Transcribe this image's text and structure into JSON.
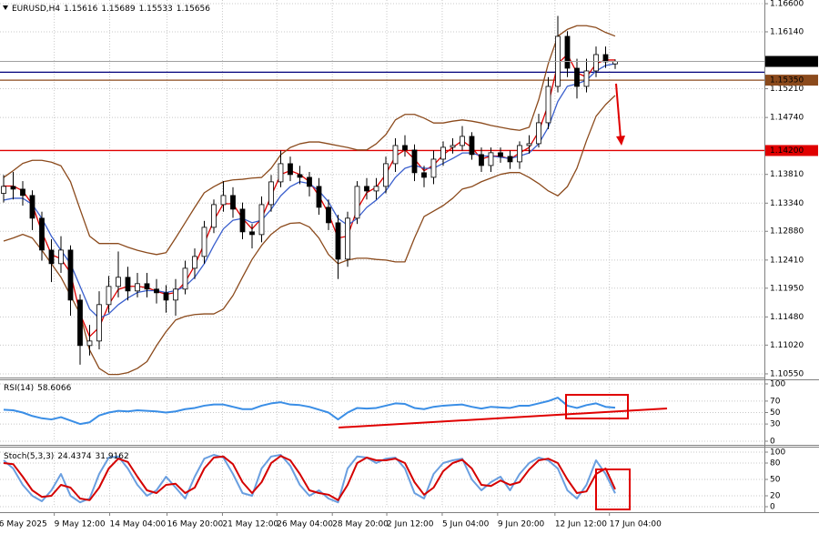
{
  "chart_data": [
    {
      "type": "candlestick",
      "title": "EURUSD,H4",
      "open": [
        1.135,
        1.13614,
        1.13569,
        1.13465,
        1.13094,
        1.12573,
        1.12351,
        1.12573,
        1.11756,
        1.11013,
        1.11087,
        1.11682,
        1.11979,
        1.12128,
        1.11905,
        1.12024,
        1.11935,
        1.11875,
        1.11756,
        1.11935,
        1.12276,
        1.12469,
        1.12945,
        1.13316,
        1.13465,
        1.13242,
        1.12871,
        1.12826,
        1.13316,
        1.13688,
        1.13985,
        1.13807,
        1.13762,
        1.13614,
        1.13272,
        1.13019,
        1.12425,
        1.13094,
        1.13614,
        1.13539,
        1.13614,
        1.13985,
        1.14282,
        1.14208,
        1.13837,
        1.13762,
        1.14059,
        1.14253,
        1.14282,
        1.14431,
        1.14134,
        1.13955,
        1.14164,
        1.14104,
        1.14015,
        1.14282,
        1.14312,
        1.14654,
        1.15248,
        1.16066,
        1.15545,
        1.15248,
        1.15501,
        1.15768,
        1.15616
      ],
      "high": [
        1.138,
        1.1385,
        1.137,
        1.1355,
        1.132,
        1.1275,
        1.128,
        1.1265,
        1.1185,
        1.1135,
        1.119,
        1.1215,
        1.1255,
        1.123,
        1.122,
        1.122,
        1.121,
        1.12,
        1.121,
        1.124,
        1.126,
        1.1305,
        1.134,
        1.137,
        1.136,
        1.1335,
        1.13,
        1.1345,
        1.138,
        1.142,
        1.141,
        1.1395,
        1.1385,
        1.1375,
        1.134,
        1.1315,
        1.132,
        1.137,
        1.1375,
        1.1375,
        1.141,
        1.144,
        1.1445,
        1.143,
        1.1395,
        1.142,
        1.1435,
        1.144,
        1.146,
        1.145,
        1.1425,
        1.1425,
        1.1425,
        1.142,
        1.1435,
        1.1445,
        1.148,
        1.154,
        1.164,
        1.1615,
        1.157,
        1.157,
        1.159,
        1.159,
        1.15689
      ],
      "low": [
        1.1335,
        1.134,
        1.133,
        1.129,
        1.124,
        1.1205,
        1.122,
        1.115,
        1.107,
        1.1085,
        1.1095,
        1.1155,
        1.118,
        1.1175,
        1.118,
        1.118,
        1.117,
        1.1155,
        1.115,
        1.1185,
        1.121,
        1.1235,
        1.1285,
        1.132,
        1.131,
        1.1275,
        1.126,
        1.127,
        1.132,
        1.136,
        1.137,
        1.1365,
        1.1345,
        1.1315,
        1.129,
        1.121,
        1.123,
        1.13,
        1.134,
        1.134,
        1.135,
        1.1385,
        1.141,
        1.137,
        1.136,
        1.1365,
        1.1395,
        1.1415,
        1.142,
        1.1405,
        1.1385,
        1.1385,
        1.14,
        1.139,
        1.139,
        1.1415,
        1.1425,
        1.1455,
        1.1515,
        1.154,
        1.1505,
        1.1515,
        1.154,
        1.1555,
        1.15533
      ],
      "close": [
        1.13614,
        1.13569,
        1.13465,
        1.13094,
        1.12573,
        1.12351,
        1.12573,
        1.11756,
        1.11013,
        1.11087,
        1.11682,
        1.11979,
        1.12128,
        1.11905,
        1.12024,
        1.11935,
        1.11875,
        1.11756,
        1.11935,
        1.12276,
        1.12469,
        1.12945,
        1.13316,
        1.13465,
        1.13242,
        1.12871,
        1.12826,
        1.13316,
        1.13688,
        1.13985,
        1.13807,
        1.13762,
        1.13614,
        1.13272,
        1.13019,
        1.12425,
        1.13094,
        1.13614,
        1.13539,
        1.13614,
        1.13985,
        1.14282,
        1.14208,
        1.13837,
        1.13762,
        1.14059,
        1.14253,
        1.14282,
        1.14431,
        1.14134,
        1.13955,
        1.14164,
        1.14104,
        1.14015,
        1.14282,
        1.14312,
        1.14654,
        1.15248,
        1.16066,
        1.15545,
        1.15248,
        1.15501,
        1.15768,
        1.1565,
        1.15656
      ],
      "up_color": "#ffffff",
      "down_color": "#000000",
      "series": [
        {
          "color": "#8b4a1c",
          "values": [
            1.1376,
            1.1387,
            1.1399,
            1.1404,
            1.1404,
            1.1401,
            1.1395,
            1.1369,
            1.1324,
            1.128,
            1.1268,
            1.1268,
            1.1268,
            1.1262,
            1.1257,
            1.1253,
            1.125,
            1.1253,
            1.1277,
            1.1302,
            1.1327,
            1.1351,
            1.1361,
            1.1369,
            1.1372,
            1.1373,
            1.1375,
            1.1376,
            1.1391,
            1.1413,
            1.1425,
            1.1431,
            1.1434,
            1.1434,
            1.1431,
            1.1428,
            1.1425,
            1.1421,
            1.1421,
            1.1431,
            1.1446,
            1.147,
            1.1479,
            1.1479,
            1.1473,
            1.1465,
            1.1465,
            1.1468,
            1.147,
            1.1468,
            1.1465,
            1.1461,
            1.1458,
            1.1455,
            1.1453,
            1.1458,
            1.1503,
            1.1562,
            1.1607,
            1.1618,
            1.1624,
            1.1624,
            1.1621,
            1.1613,
            1.1607
          ]
        },
        {
          "color": "#8b4a1c",
          "values": [
            1.1272,
            1.1277,
            1.1283,
            1.1277,
            1.1257,
            1.1235,
            1.1213,
            1.1183,
            1.1153,
            1.1094,
            1.1064,
            1.1054,
            1.1054,
            1.1057,
            1.1064,
            1.1075,
            1.1101,
            1.1124,
            1.1143,
            1.1149,
            1.1152,
            1.1153,
            1.1153,
            1.1161,
            1.1183,
            1.1213,
            1.1242,
            1.1265,
            1.1283,
            1.1295,
            1.1301,
            1.1302,
            1.1295,
            1.1277,
            1.125,
            1.1235,
            1.1241,
            1.1244,
            1.1244,
            1.1242,
            1.1241,
            1.1238,
            1.1238,
            1.1277,
            1.1312,
            1.1321,
            1.133,
            1.1342,
            1.1357,
            1.1361,
            1.1369,
            1.1375,
            1.1381,
            1.1384,
            1.1384,
            1.1376,
            1.1366,
            1.1354,
            1.1346,
            1.1361,
            1.1391,
            1.1436,
            1.1476,
            1.1495,
            1.151
          ]
        },
        {
          "color": "#e00000",
          "values": [
            1.1362,
            1.1362,
            1.1354,
            1.1332,
            1.1287,
            1.125,
            1.1243,
            1.122,
            1.1153,
            1.1116,
            1.1131,
            1.1168,
            1.1193,
            1.1198,
            1.1198,
            1.1196,
            1.119,
            1.1185,
            1.1188,
            1.1205,
            1.1232,
            1.1268,
            1.1306,
            1.1333,
            1.1333,
            1.1309,
            1.1292,
            1.1309,
            1.1346,
            1.1381,
            1.1387,
            1.1381,
            1.1369,
            1.1346,
            1.1317,
            1.1277,
            1.128,
            1.1324,
            1.1351,
            1.136,
            1.1381,
            1.1411,
            1.1421,
            1.1406,
            1.1387,
            1.1396,
            1.1413,
            1.1425,
            1.1436,
            1.1425,
            1.1406,
            1.1411,
            1.1411,
            1.1406,
            1.1416,
            1.1425,
            1.1451,
            1.1495,
            1.1562,
            1.1577,
            1.1547,
            1.154,
            1.1562,
            1.1568,
            1.1568
          ]
        },
        {
          "color": "#3a5fcd",
          "values": [
            1.1339,
            1.1342,
            1.1342,
            1.1332,
            1.1309,
            1.128,
            1.1257,
            1.1235,
            1.1198,
            1.1161,
            1.1146,
            1.1153,
            1.1168,
            1.1179,
            1.1188,
            1.1191,
            1.1191,
            1.1188,
            1.1191,
            1.1198,
            1.1213,
            1.1235,
            1.1265,
            1.1292,
            1.1306,
            1.1309,
            1.1302,
            1.1306,
            1.1324,
            1.1346,
            1.1361,
            1.1369,
            1.1366,
            1.1354,
            1.1336,
            1.1309,
            1.1298,
            1.1309,
            1.1327,
            1.1339,
            1.1354,
            1.1376,
            1.1391,
            1.1396,
            1.1391,
            1.1391,
            1.1399,
            1.1407,
            1.1416,
            1.1416,
            1.1411,
            1.1411,
            1.1409,
            1.1407,
            1.1411,
            1.1416,
            1.1431,
            1.1458,
            1.15,
            1.1525,
            1.1529,
            1.1535,
            1.155,
            1.1559,
            1.1562
          ]
        }
      ],
      "levels": [
        {
          "value": 1.142,
          "label": "1.14200",
          "color": "#e00000"
        },
        {
          "value": 1.1548,
          "color": "#00007a"
        },
        {
          "value": 1.1535,
          "label": "1.15350",
          "color": "#8b4a1c"
        }
      ],
      "ylim": [
        1.1049,
        1.1666
      ],
      "yticks": [
        {
          "value": 1.166,
          "label": "1.16600"
        },
        {
          "value": 1.1614,
          "label": "1.16140"
        },
        {
          "value": 1.1521,
          "label": "1.15210"
        },
        {
          "value": 1.1474,
          "label": "1.14740"
        },
        {
          "value": 1.1381,
          "label": "1.13810"
        },
        {
          "value": 1.1334,
          "label": "1.13340"
        },
        {
          "value": 1.1288,
          "label": "1.12880"
        },
        {
          "value": 1.1241,
          "label": "1.12410"
        },
        {
          "value": 1.1195,
          "label": "1.11950"
        },
        {
          "value": 1.1148,
          "label": "1.11480"
        },
        {
          "value": 1.1102,
          "label": "1.11020"
        },
        {
          "value": 1.1055,
          "label": "1.10550"
        }
      ],
      "xlim": [
        -0.38,
        79.62
      ],
      "xticks": [
        {
          "value": -0.5,
          "label": "6 May 2025"
        },
        {
          "value": 5.3,
          "label": "9 May 12:00"
        },
        {
          "value": 11.1,
          "label": "14 May 04:00"
        },
        {
          "value": 17.1,
          "label": "16 May 20:00"
        },
        {
          "value": 22.9,
          "label": "21 May 12:00"
        },
        {
          "value": 28.6,
          "label": "26 May 04:00"
        },
        {
          "value": 34.4,
          "label": "28 May 20:00"
        },
        {
          "value": 40.1,
          "label": "2 Jun 12:00"
        },
        {
          "value": 45.9,
          "label": "5 Jun 04:00"
        },
        {
          "value": 51.7,
          "label": "9 Jun 20:00"
        },
        {
          "value": 57.7,
          "label": "12 Jun 12:00"
        },
        {
          "value": 63.4,
          "label": "17 Jun 04:00"
        }
      ],
      "grid": true
    },
    {
      "type": "line",
      "series": [
        {
          "name": "RSI(14)",
          "color": "#3a8ee6",
          "values": [
            55,
            54,
            50,
            44,
            40,
            38,
            42,
            36,
            30,
            33,
            45,
            50,
            53,
            52,
            54,
            53,
            52,
            50,
            52,
            56,
            58,
            62,
            64,
            64,
            60,
            56,
            56,
            62,
            66,
            68,
            64,
            63,
            60,
            55,
            50,
            38,
            50,
            58,
            57,
            58,
            62,
            66,
            65,
            58,
            56,
            60,
            62,
            63,
            64,
            60,
            57,
            60,
            59,
            58,
            62,
            62,
            66,
            70,
            76,
            62,
            58,
            63,
            66,
            60,
            58.6066
          ]
        }
      ],
      "ylim": [
        0,
        100
      ],
      "yticks": [
        0,
        30,
        50,
        70,
        100
      ],
      "grid": true
    },
    {
      "type": "line",
      "series": [
        {
          "name": "Stoch(5,3,3)",
          "color": "#6a9fe0",
          "values": [
            85,
            70,
            40,
            20,
            10,
            30,
            60,
            20,
            8,
            15,
            60,
            90,
            92,
            70,
            40,
            20,
            30,
            55,
            35,
            15,
            55,
            88,
            95,
            90,
            60,
            25,
            20,
            70,
            92,
            95,
            75,
            40,
            20,
            30,
            15,
            8,
            70,
            92,
            90,
            80,
            88,
            90,
            70,
            25,
            15,
            60,
            80,
            85,
            88,
            50,
            30,
            45,
            55,
            30,
            60,
            80,
            90,
            85,
            70,
            30,
            15,
            40,
            85,
            60,
            24.4374
          ]
        },
        {
          "color": "#d40000",
          "values": [
            80,
            78,
            55,
            30,
            18,
            20,
            40,
            35,
            15,
            12,
            35,
            70,
            88,
            82,
            55,
            30,
            25,
            40,
            42,
            25,
            35,
            70,
            90,
            92,
            78,
            45,
            25,
            45,
            80,
            93,
            85,
            60,
            30,
            25,
            22,
            12,
            40,
            80,
            90,
            85,
            85,
            88,
            80,
            45,
            22,
            35,
            65,
            80,
            86,
            70,
            40,
            38,
            48,
            40,
            45,
            68,
            85,
            88,
            80,
            50,
            25,
            28,
            60,
            70,
            31.9162
          ]
        }
      ],
      "ylim": [
        0,
        100
      ],
      "yticks": [
        0,
        20,
        50,
        80,
        100
      ],
      "grid": true
    }
  ]
}
